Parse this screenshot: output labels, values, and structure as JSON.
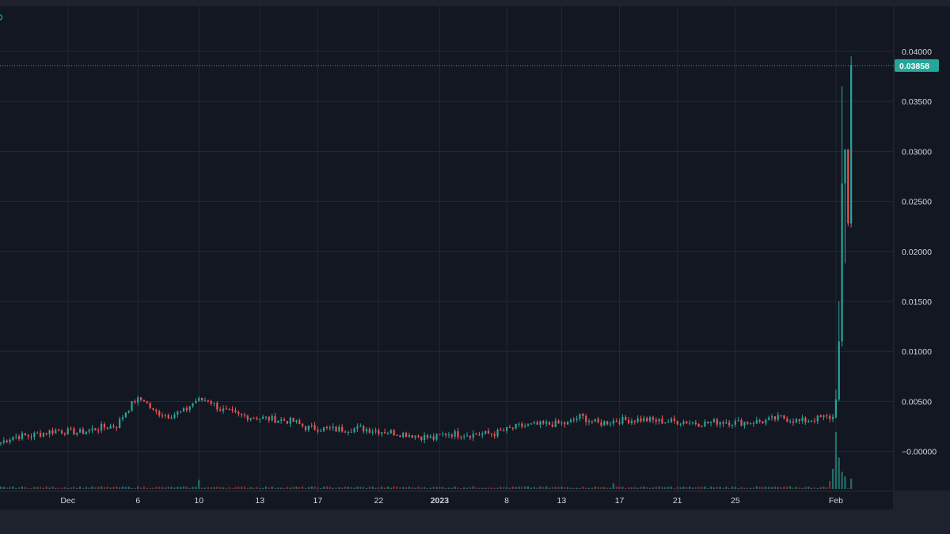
{
  "colors": {
    "background": "#131722",
    "frame": "#1e222d",
    "grid": "#242833",
    "axis_text": "#d1d4dc",
    "up": "#26a69a",
    "down": "#ef5350",
    "volume_up": "#1f6f69",
    "volume_down": "#7a3433",
    "last_price_line": "#26a69a"
  },
  "chart_data": {
    "type": "candlestick",
    "title": "",
    "xlabel": "",
    "ylabel": "",
    "ylim": [
      -0.0039,
      0.0445
    ],
    "y_ticks": [
      "0.04000",
      "0.03500",
      "0.03000",
      "0.02500",
      "0.02000",
      "0.01500",
      "0.01000",
      "0.00500",
      "−0.00000"
    ],
    "y_tick_values": [
      0.04,
      0.035,
      0.03,
      0.025,
      0.02,
      0.015,
      0.01,
      0.005,
      0.0
    ],
    "x_tick_labels": [
      {
        "label": "Dec",
        "index": 22
      },
      {
        "label": "6",
        "index": 45
      },
      {
        "label": "10",
        "index": 65
      },
      {
        "label": "13",
        "index": 85
      },
      {
        "label": "17",
        "index": 104
      },
      {
        "label": "22",
        "index": 124
      },
      {
        "label": "2023",
        "index": 144
      },
      {
        "label": "8",
        "index": 166
      },
      {
        "label": "13",
        "index": 184
      },
      {
        "label": "17",
        "index": 203
      },
      {
        "label": "21",
        "index": 222
      },
      {
        "label": "25",
        "index": 241
      },
      {
        "label": "Feb",
        "index": 274
      }
    ],
    "last_price": "0.03858",
    "last_price_value": 0.03858,
    "grid": true,
    "candle_count": 280,
    "keypoints": [
      [
        0,
        0.0009
      ],
      [
        4,
        0.0015
      ],
      [
        10,
        0.0016
      ],
      [
        18,
        0.0021
      ],
      [
        26,
        0.0019
      ],
      [
        33,
        0.0024
      ],
      [
        38,
        0.0026
      ],
      [
        41,
        0.004
      ],
      [
        44,
        0.0051
      ],
      [
        47,
        0.0052
      ],
      [
        50,
        0.004
      ],
      [
        55,
        0.0036
      ],
      [
        60,
        0.004
      ],
      [
        64,
        0.0051
      ],
      [
        68,
        0.0052
      ],
      [
        72,
        0.0042
      ],
      [
        78,
        0.0036
      ],
      [
        84,
        0.0034
      ],
      [
        90,
        0.0032
      ],
      [
        96,
        0.003
      ],
      [
        100,
        0.0024
      ],
      [
        110,
        0.0022
      ],
      [
        118,
        0.0023
      ],
      [
        126,
        0.002
      ],
      [
        134,
        0.0017
      ],
      [
        142,
        0.0013
      ],
      [
        146,
        0.0018
      ],
      [
        154,
        0.0017
      ],
      [
        162,
        0.0018
      ],
      [
        170,
        0.0025
      ],
      [
        178,
        0.0027
      ],
      [
        186,
        0.0028
      ],
      [
        190,
        0.0035
      ],
      [
        196,
        0.0028
      ],
      [
        202,
        0.0031
      ],
      [
        210,
        0.0032
      ],
      [
        218,
        0.003
      ],
      [
        224,
        0.003
      ],
      [
        230,
        0.0028
      ],
      [
        236,
        0.003
      ],
      [
        242,
        0.0029
      ],
      [
        250,
        0.003
      ],
      [
        256,
        0.0034
      ],
      [
        262,
        0.003
      ],
      [
        270,
        0.0034
      ]
    ],
    "final_candles": [
      {
        "o": 0.0034,
        "h": 0.0062,
        "l": 0.0033,
        "c": 0.0052
      },
      {
        "o": 0.0052,
        "h": 0.015,
        "l": 0.005,
        "c": 0.011
      },
      {
        "o": 0.011,
        "h": 0.0365,
        "l": 0.0105,
        "c": 0.0268
      },
      {
        "o": 0.0268,
        "h": 0.0302,
        "l": 0.0188,
        "c": 0.0302
      },
      {
        "o": 0.0302,
        "h": 0.0302,
        "l": 0.0225,
        "c": 0.0228
      },
      {
        "o": 0.0228,
        "h": 0.0395,
        "l": 0.0224,
        "c": 0.0386
      }
    ],
    "volume_spikes": [
      {
        "index": 65,
        "value": 0.16
      },
      {
        "index": 201,
        "value": 0.1
      },
      {
        "index": 272,
        "value": 0.14
      },
      {
        "index": 273,
        "value": 0.35
      },
      {
        "index": 274,
        "value": 1.0
      },
      {
        "index": 275,
        "value": 0.55
      },
      {
        "index": 276,
        "value": 0.3
      },
      {
        "index": 277,
        "value": 0.22
      },
      {
        "index": 279,
        "value": 0.18
      }
    ]
  }
}
